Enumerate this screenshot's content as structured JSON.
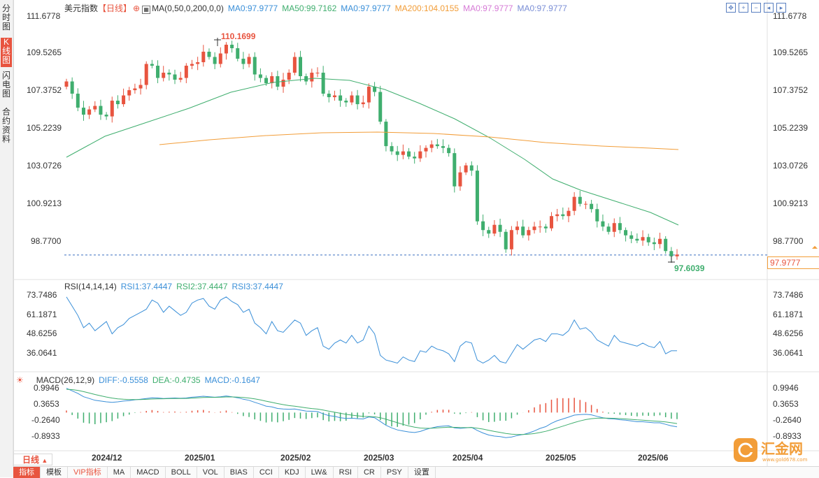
{
  "side_tabs": [
    {
      "label": "分时图",
      "active": false
    },
    {
      "label": "K线图",
      "active": true
    },
    {
      "label": "闪电图",
      "active": false
    },
    {
      "label": "合约资料",
      "active": false
    }
  ],
  "main_legend": {
    "name": "美元指数",
    "period": "【日线】",
    "ma_params": "MA(0,50,0,200,0,0)",
    "ma1": "MA0:97.9777",
    "ma2": "MA50:99.7162",
    "ma3": "MA0:97.9777",
    "ma4": "MA200:104.0155",
    "ma5": "MA0:97.9777",
    "ma6": "MA0:97.9777"
  },
  "price_axis": [
    "111.6778",
    "109.5265",
    "107.3752",
    "105.2239",
    "103.0726",
    "100.9213",
    "98.7700"
  ],
  "high_label": "110.1699",
  "low_label": "97.6039",
  "last_price": "97.9777",
  "rsi_legend": {
    "name": "RSI(14,14,14)",
    "r1": "RSI1:37.4447",
    "r2": "RSI2:37.4447",
    "r3": "RSI3:37.4447"
  },
  "rsi_axis": [
    "73.7486",
    "61.1871",
    "48.6256",
    "36.0641"
  ],
  "macd_legend": {
    "name": "MACD(26,12,9)",
    "diff": "DIFF:-0.5558",
    "dea": "DEA:-0.4735",
    "macd": "MACD:-0.1647"
  },
  "macd_axis": [
    "0.9946",
    "0.3653",
    "-0.2640",
    "-0.8933"
  ],
  "x_axis": [
    "2024/12",
    "2025/01",
    "2025/02",
    "2025/03",
    "2025/04",
    "2025/05",
    "2025/06"
  ],
  "period_button": "日线",
  "bottom_tabs": [
    "指标",
    "模板",
    "VIP指标",
    "MA",
    "MACD",
    "BOLL",
    "VOL",
    "BIAS",
    "CCI",
    "KDJ",
    "LW&",
    "RSI",
    "CR",
    "PSY",
    "设置"
  ],
  "logo_text": "汇金网",
  "logo_url": "www.gold678.com",
  "colors": {
    "up": "#e8543f",
    "down": "#3fae6e",
    "ma50": "#3fae6e",
    "ma200": "#f29d38",
    "rsi": "#3a8fd8",
    "diff": "#3a8fd8",
    "dea": "#3fae6e"
  },
  "chart_data": {
    "type": "candlestick",
    "title": "美元指数 日线",
    "candles_close": [
      107.9,
      107.2,
      106.4,
      106.0,
      106.3,
      106.5,
      106.0,
      105.9,
      106.8,
      106.6,
      107.1,
      107.4,
      107.5,
      107.7,
      108.9,
      108.8,
      108.1,
      108.4,
      108.3,
      108.0,
      108.1,
      108.8,
      108.9,
      109.0,
      109.6,
      109.3,
      108.9,
      109.5,
      110.0,
      109.8,
      109.2,
      108.9,
      109.3,
      108.3,
      108.1,
      107.8,
      108.2,
      107.6,
      108.0,
      108.4,
      109.3,
      108.2,
      107.9,
      108.4,
      108.4,
      107.2,
      107.0,
      107.1,
      106.8,
      106.7,
      107.1,
      106.6,
      106.7,
      107.6,
      107.3,
      105.6,
      104.2,
      103.9,
      103.7,
      103.9,
      103.6,
      103.5,
      103.9,
      104.1,
      104.3,
      104.2,
      104.1,
      103.8,
      101.9,
      102.7,
      103.1,
      102.8,
      99.9,
      99.4,
      99.2,
      99.7,
      99.3,
      98.3,
      99.4,
      99.6,
      99.1,
      99.4,
      99.6,
      99.6,
      99.5,
      100.2,
      100.3,
      100.2,
      100.5,
      101.3,
      100.9,
      100.9,
      100.6,
      99.9,
      99.6,
      99.3,
      99.8,
      99.4,
      99.1,
      98.9,
      98.8,
      99.0,
      98.7,
      98.6,
      98.9,
      98.2,
      97.9,
      98.0
    ]
  }
}
